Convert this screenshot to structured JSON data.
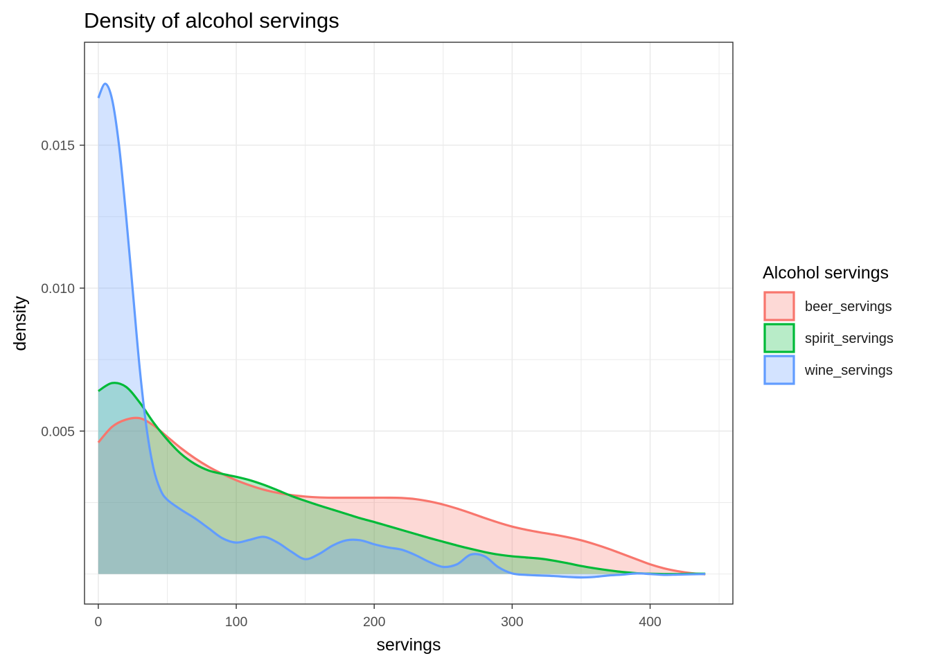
{
  "chart_data": {
    "type": "area",
    "title": "Density of alcohol servings",
    "xlabel": "servings",
    "ylabel": "density",
    "xlim": [
      -10,
      460
    ],
    "ylim": [
      -0.00105,
      0.0186
    ],
    "x_ticks": [
      0,
      100,
      200,
      300,
      400
    ],
    "x_tick_labels": [
      "0",
      "100",
      "200",
      "300",
      "400"
    ],
    "y_ticks": [
      0.005,
      0.01,
      0.015
    ],
    "y_tick_labels": [
      "0.005",
      "0.010",
      "0.015"
    ],
    "grid": true,
    "legend": {
      "title": "Alcohol servings",
      "position": "right"
    },
    "series": [
      {
        "name": "beer_servings",
        "color": "#F8766D",
        "x": [
          0,
          10,
          20,
          30,
          40,
          50,
          60,
          70,
          80,
          90,
          100,
          110,
          120,
          130,
          140,
          150,
          160,
          170,
          180,
          190,
          200,
          210,
          220,
          230,
          240,
          250,
          260,
          270,
          280,
          290,
          300,
          310,
          320,
          330,
          340,
          350,
          360,
          370,
          380,
          390,
          400,
          410,
          420,
          430,
          440
        ],
        "y": [
          0.0046,
          0.00515,
          0.0054,
          0.00545,
          0.0052,
          0.0048,
          0.0044,
          0.00405,
          0.00375,
          0.0035,
          0.00328,
          0.0031,
          0.00295,
          0.00284,
          0.00276,
          0.00271,
          0.00268,
          0.00267,
          0.00267,
          0.00267,
          0.00267,
          0.00267,
          0.00266,
          0.00262,
          0.00254,
          0.00243,
          0.00229,
          0.00213,
          0.00196,
          0.0018,
          0.00166,
          0.00155,
          0.00146,
          0.00138,
          0.00129,
          0.00118,
          0.00104,
          0.00088,
          0.0007,
          0.00052,
          0.00034,
          0.0002,
          0.0001,
          3e-05,
          -1e-05
        ]
      },
      {
        "name": "spirit_servings",
        "color": "#00BA38",
        "x": [
          0,
          10,
          20,
          30,
          40,
          50,
          60,
          70,
          80,
          90,
          100,
          110,
          120,
          130,
          140,
          150,
          160,
          170,
          180,
          190,
          200,
          210,
          220,
          230,
          240,
          250,
          260,
          270,
          280,
          290,
          300,
          310,
          320,
          330,
          340,
          350,
          360,
          370,
          380,
          390,
          400,
          410,
          420,
          430,
          440
        ],
        "y": [
          0.0064,
          0.00668,
          0.00655,
          0.006,
          0.0053,
          0.0047,
          0.0042,
          0.00385,
          0.00362,
          0.0035,
          0.0034,
          0.00328,
          0.00312,
          0.00293,
          0.00273,
          0.00256,
          0.0024,
          0.00225,
          0.0021,
          0.00195,
          0.00182,
          0.00168,
          0.00154,
          0.0014,
          0.00126,
          0.00113,
          0.001,
          0.00088,
          0.00077,
          0.00068,
          0.00062,
          0.00058,
          0.00054,
          0.00047,
          0.00038,
          0.00028,
          0.0002,
          0.00013,
          7e-05,
          3e-05,
          1e-05,
          0.0,
          0.0,
          1e-05,
          1e-05
        ]
      },
      {
        "name": "wine_servings",
        "color": "#619CFF",
        "x": [
          0,
          5,
          10,
          15,
          20,
          25,
          30,
          35,
          40,
          45,
          50,
          60,
          70,
          80,
          90,
          100,
          110,
          120,
          130,
          140,
          150,
          160,
          170,
          180,
          190,
          200,
          210,
          220,
          230,
          240,
          250,
          260,
          270,
          280,
          290,
          300,
          310,
          320,
          330,
          340,
          350,
          360,
          370,
          380,
          390,
          400,
          410,
          420,
          430,
          440
        ],
        "y": [
          0.01665,
          0.01715,
          0.0166,
          0.015,
          0.0126,
          0.0099,
          0.0072,
          0.0051,
          0.0037,
          0.00295,
          0.0026,
          0.00225,
          0.00195,
          0.0016,
          0.00125,
          0.0011,
          0.0012,
          0.0013,
          0.0011,
          0.00078,
          0.00052,
          0.0007,
          0.001,
          0.00118,
          0.00118,
          0.00104,
          0.00093,
          0.00085,
          0.00066,
          0.00042,
          0.00025,
          0.00034,
          0.00068,
          0.00062,
          0.00024,
          2e-05,
          -3e-05,
          -5e-05,
          -7e-05,
          -0.0001,
          -0.00012,
          -0.0001,
          -5e-05,
          -2e-05,
          2e-05,
          0.0,
          -3e-05,
          -2e-05,
          -1e-05,
          0.0
        ]
      }
    ]
  }
}
